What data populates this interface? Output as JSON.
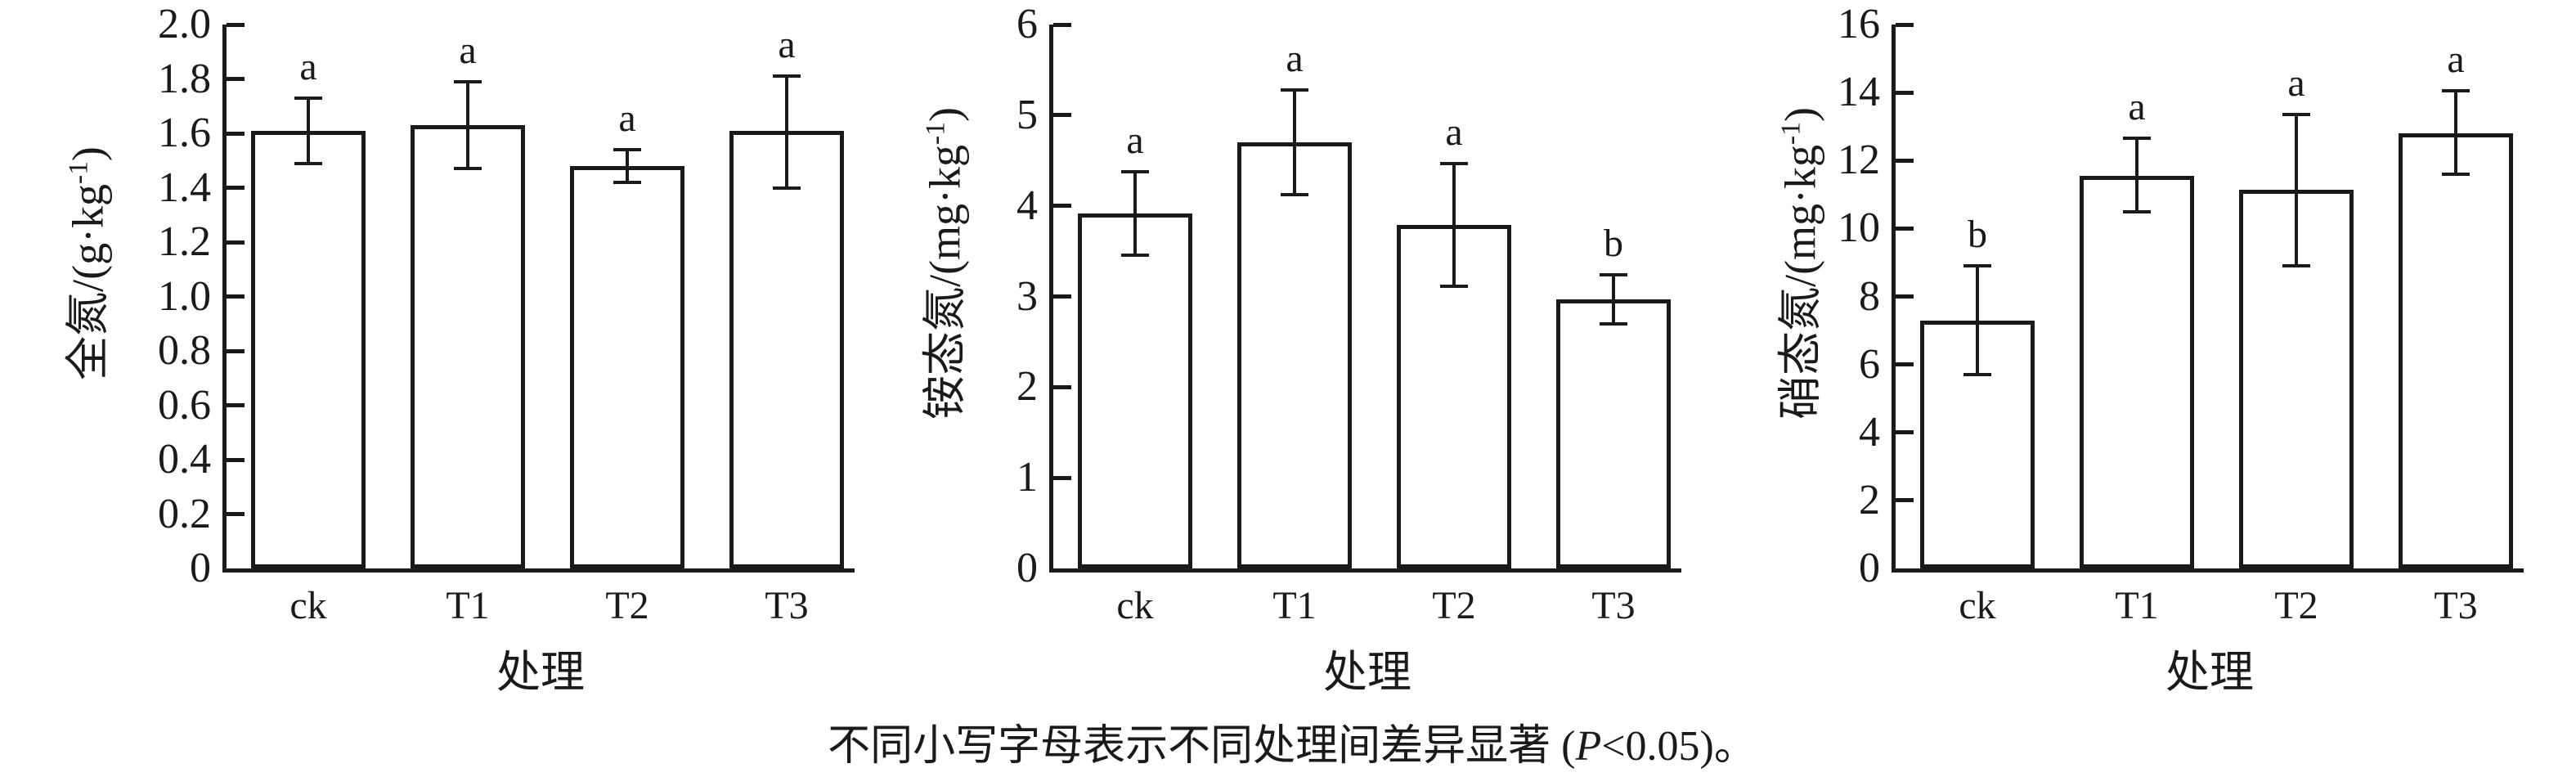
{
  "figure": {
    "background": "#ffffff",
    "axis_color": "#1a1a1a",
    "text_color": "#1a1a1a"
  },
  "caption": {
    "prefix": "不同小写字母表示不同处理间差异显著 (",
    "italic_symbol": "P",
    "suffix": "<0.05)。"
  },
  "chart_data": [
    {
      "type": "bar",
      "name": "total-nitrogen",
      "ylabel": "全氮/(g·kg⁻¹)",
      "ylabel_prefix": "全氮/(g·kg",
      "ylabel_sup": "-1",
      "ylabel_suffix": ")",
      "xlabel": "处理",
      "categories": [
        "ck",
        "T1",
        "T2",
        "T3"
      ],
      "values": [
        1.61,
        1.63,
        1.48,
        1.61
      ],
      "error_high": [
        1.73,
        1.79,
        1.54,
        1.81
      ],
      "error_low": [
        1.49,
        1.47,
        1.42,
        1.4
      ],
      "letters": [
        "a",
        "a",
        "a",
        "a"
      ],
      "ylim": [
        0,
        2.0
      ],
      "ytick_step": 0.2,
      "yticks": [
        "0",
        "0.2",
        "0.4",
        "0.6",
        "0.8",
        "1.0",
        "1.2",
        "1.4",
        "1.6",
        "1.8",
        "2.0"
      ],
      "grid": "off",
      "bar_fill": "#ffffff"
    },
    {
      "type": "bar",
      "name": "ammonium-nitrogen",
      "ylabel": "铵态氮/(mg·kg⁻¹)",
      "ylabel_prefix": "铵态氮/(mg·kg",
      "ylabel_sup": "-1",
      "ylabel_suffix": ")",
      "xlabel": "处理",
      "categories": [
        "ck",
        "T1",
        "T2",
        "T3"
      ],
      "values": [
        3.92,
        4.7,
        3.79,
        2.97
      ],
      "error_high": [
        4.38,
        5.28,
        4.47,
        3.24
      ],
      "error_low": [
        3.46,
        4.12,
        3.11,
        2.7
      ],
      "letters": [
        "a",
        "a",
        "a",
        "b"
      ],
      "ylim": [
        0,
        6
      ],
      "ytick_step": 1,
      "yticks": [
        "0",
        "1",
        "2",
        "3",
        "4",
        "5",
        "6"
      ],
      "grid": "off",
      "bar_fill": "#ffffff"
    },
    {
      "type": "bar",
      "name": "nitrate-nitrogen",
      "ylabel": "硝态氮/(mg·kg⁻¹)",
      "ylabel_prefix": "硝态氮/(mg·kg",
      "ylabel_sup": "-1",
      "ylabel_suffix": ")",
      "xlabel": "处理",
      "categories": [
        "ck",
        "T1",
        "T2",
        "T3"
      ],
      "values": [
        7.3,
        11.55,
        11.15,
        12.8
      ],
      "error_high": [
        8.9,
        12.65,
        13.35,
        14.05
      ],
      "error_low": [
        5.7,
        10.5,
        8.9,
        11.6
      ],
      "letters": [
        "b",
        "a",
        "a",
        "a"
      ],
      "ylim": [
        0,
        16
      ],
      "ytick_step": 2,
      "yticks": [
        "0",
        "2",
        "4",
        "6",
        "8",
        "10",
        "12",
        "14",
        "16"
      ],
      "grid": "off",
      "bar_fill": "#ffffff"
    }
  ]
}
